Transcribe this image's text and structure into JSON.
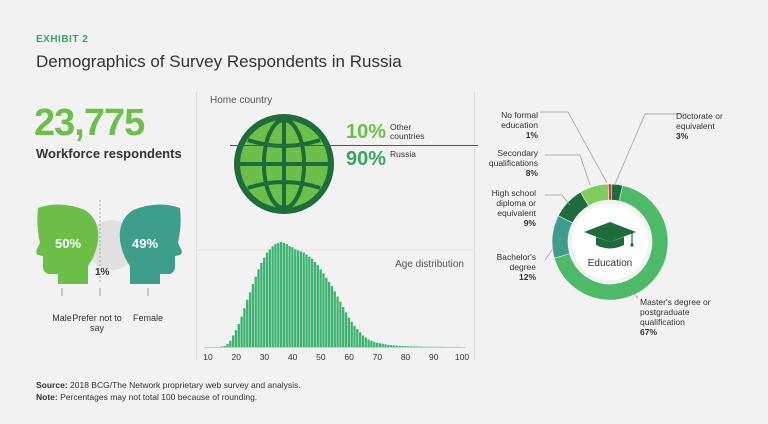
{
  "header": {
    "exhibit": "EXHIBIT 2",
    "title": "Demographics of Survey Respondents in Russia"
  },
  "respondents": {
    "count": "23,775",
    "label": "Workforce respondents"
  },
  "gender": {
    "male_pct": "50%",
    "female_pct": "49%",
    "other_pct": "1%",
    "male_label": "Male",
    "other_label": "Prefer not to say",
    "female_label": "Female"
  },
  "home_country": {
    "section_label": "Home country",
    "other_pct": "10%",
    "other_label": "Other countries",
    "russia_pct": "90%",
    "russia_label": "Russia"
  },
  "education_center_label": "Education",
  "footer": {
    "source_label": "Source:",
    "source_text": "2018 BCG/The Network proprietary web survey and analysis.",
    "note_label": "Note:",
    "note_text": "Percentages may not total 100 because of rounding."
  },
  "colors": {
    "light_green": "#6cc04a",
    "mid_green": "#3aa35f",
    "dark_green": "#1e6b3c",
    "teal": "#3e9e8c",
    "red": "#d6373a"
  },
  "chart_data": [
    {
      "type": "bar",
      "title": "Age distribution",
      "xlabel": "",
      "ylabel": "",
      "xlim": [
        10,
        100
      ],
      "x_ticks": [
        "10",
        "20",
        "30",
        "40",
        "50",
        "60",
        "70",
        "80",
        "90",
        "100"
      ],
      "x": [
        15,
        16,
        17,
        18,
        19,
        20,
        21,
        22,
        23,
        24,
        25,
        26,
        27,
        28,
        29,
        30,
        31,
        32,
        33,
        34,
        35,
        36,
        37,
        38,
        39,
        40,
        41,
        42,
        43,
        44,
        45,
        46,
        47,
        48,
        49,
        50,
        51,
        52,
        53,
        54,
        55,
        56,
        57,
        58,
        59,
        60,
        61,
        62,
        63,
        64,
        65,
        66,
        67,
        68,
        69,
        70,
        71,
        72,
        73,
        74,
        75,
        76,
        77,
        78,
        79,
        80,
        81,
        82,
        83,
        84,
        85,
        86,
        87,
        88,
        89,
        90,
        91,
        92,
        93,
        94,
        95,
        96,
        97,
        98,
        99
      ],
      "values": [
        0.5,
        1,
        3,
        6,
        11,
        16,
        22,
        29,
        37,
        45,
        52,
        60,
        67,
        74,
        80,
        85,
        90,
        93,
        96,
        98,
        99,
        100,
        99,
        98,
        96,
        95,
        93,
        92,
        91,
        90,
        88,
        86,
        84,
        81,
        78,
        74,
        70,
        66,
        62,
        58,
        53,
        48,
        43,
        38,
        33,
        28,
        24,
        20,
        17,
        14,
        11,
        9,
        7,
        6,
        5,
        4,
        3.5,
        3,
        2.5,
        2,
        1.8,
        1.5,
        1.2,
        1,
        0.9,
        0.8,
        0.7,
        0.6,
        0.5,
        0.5,
        0.4,
        0.4,
        0.3,
        0.3,
        0.3,
        0.2,
        0.2,
        0.2,
        0.2,
        0.1,
        0.1,
        0.1,
        0.1,
        0.1,
        0.1
      ]
    },
    {
      "type": "pie",
      "title": "",
      "series": [
        {
          "name": "No formal education",
          "value": 1,
          "label": "1%",
          "color": "#d6373a"
        },
        {
          "name": "Doctorate or equivalent",
          "value": 3,
          "label": "3%",
          "color": "#1e6b3c"
        },
        {
          "name": "Master's degree or postgraduate qualification",
          "value": 67,
          "label": "67%",
          "color": "#4dba6a"
        },
        {
          "name": "Bachelor's degree",
          "value": 12,
          "label": "12%",
          "color": "#3e9e8c"
        },
        {
          "name": "High school diploma or equivalent",
          "value": 9,
          "label": "9%",
          "color": "#1e6b3c"
        },
        {
          "name": "Secondary qualifications",
          "value": 8,
          "label": "8%",
          "color": "#7ccf5a"
        }
      ]
    }
  ]
}
